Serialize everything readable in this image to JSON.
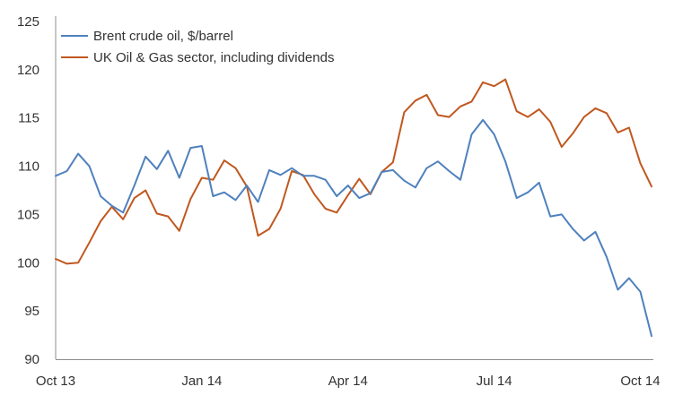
{
  "chart_data": {
    "type": "line",
    "title": "",
    "xlabel": "",
    "ylabel": "",
    "ylim": [
      90,
      125
    ],
    "yticks": [
      90,
      95,
      100,
      105,
      110,
      115,
      120,
      125
    ],
    "xticks": [
      {
        "label": "Oct 13",
        "index": 0
      },
      {
        "label": "Jan 14",
        "index": 13
      },
      {
        "label": "Apr 14",
        "index": 26
      },
      {
        "label": "Jul 14",
        "index": 39
      },
      {
        "label": "Oct 14",
        "index": 52
      }
    ],
    "grid": false,
    "legend_position": "top-left",
    "series": [
      {
        "name": "Brent crude oil, $/barrel",
        "color": "#4f81bd",
        "values": [
          109.0,
          109.5,
          111.3,
          110.0,
          106.9,
          105.9,
          105.2,
          108.0,
          111.0,
          109.7,
          111.6,
          108.8,
          111.9,
          112.1,
          106.9,
          107.3,
          106.5,
          108.0,
          106.3,
          109.6,
          109.1,
          109.8,
          109.0,
          109.0,
          108.6,
          106.9,
          108.0,
          106.7,
          107.2,
          109.4,
          109.6,
          108.5,
          107.8,
          109.8,
          110.5,
          109.5,
          108.6,
          113.3,
          114.8,
          113.3,
          110.5,
          106.7,
          107.3,
          108.3,
          104.8,
          105.0,
          103.5,
          102.3,
          103.2,
          100.6,
          97.2,
          98.4,
          97.0,
          92.4
        ]
      },
      {
        "name": "UK Oil & Gas sector, including dividends",
        "color": "#c0581f",
        "values": [
          100.4,
          99.9,
          100.0,
          102.1,
          104.3,
          105.8,
          104.5,
          106.7,
          107.5,
          105.1,
          104.8,
          103.3,
          106.6,
          108.8,
          108.6,
          110.6,
          109.8,
          107.9,
          102.8,
          103.5,
          105.6,
          109.5,
          109.1,
          107.1,
          105.6,
          105.2,
          107.0,
          108.7,
          107.1,
          109.4,
          110.4,
          115.6,
          116.8,
          117.4,
          115.3,
          115.1,
          116.2,
          116.7,
          118.7,
          118.3,
          119.0,
          115.7,
          115.1,
          115.9,
          114.6,
          112.0,
          113.4,
          115.1,
          116.0,
          115.5,
          113.5,
          114.0,
          110.3,
          107.9
        ]
      }
    ]
  }
}
